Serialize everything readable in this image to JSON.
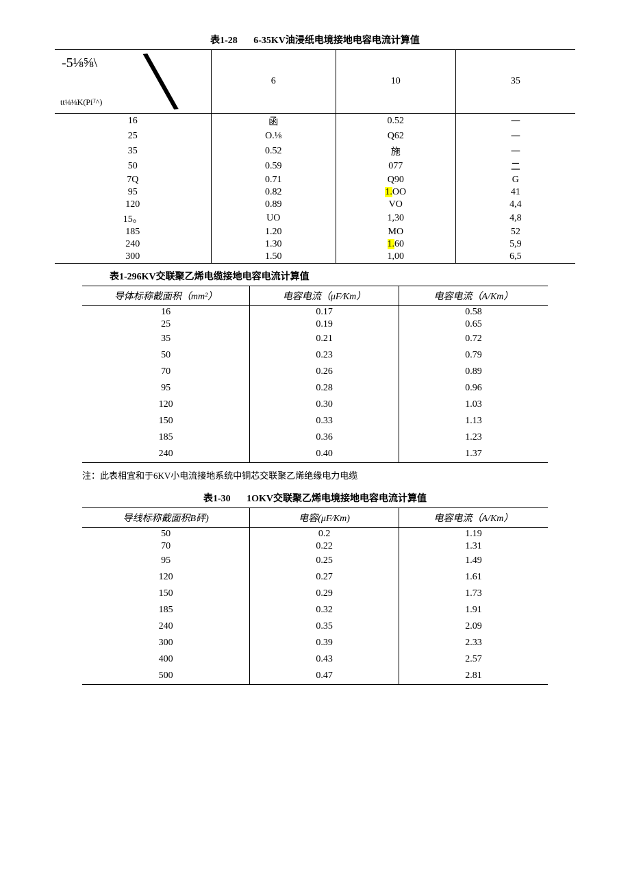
{
  "table1": {
    "caption_num": "表1-28",
    "caption_title": "6-35KV油浸纸电境接地电容电流计算值",
    "diag_top": "-5⅛⅝\\",
    "diag_bottom": "tt⅛⅛K(Piᵀ^)",
    "col_headers": [
      "6",
      "10",
      "35"
    ],
    "rows": [
      {
        "c0": "16",
        "c1": "函",
        "c2": "0.52",
        "c3": "一",
        "hl": []
      },
      {
        "c0": "25",
        "c1": "O.⅛",
        "c2": "Q62",
        "c3": "一",
        "hl": []
      },
      {
        "c0": "35",
        "c1": "0.52",
        "c2": "施",
        "c3": "一",
        "hl": []
      },
      {
        "c0": "50",
        "c1": "0.59",
        "c2": "077",
        "c3": "二",
        "hl": []
      },
      {
        "c0": "7Q",
        "c1": "0.71",
        "c2": "Q90",
        "c3": "G",
        "hl": []
      },
      {
        "c0": "95",
        "c1": "0.82",
        "c2_a": "1.",
        "c2_b": "OO",
        "c3": "41",
        "hl": [
          "c2_a"
        ]
      },
      {
        "c0": "120",
        "c1": "0.89",
        "c2": "VO",
        "c3": "4,4",
        "hl": []
      },
      {
        "c0": "15。",
        "c1": "UO",
        "c2": "1,30",
        "c3": "4,8",
        "hl": []
      },
      {
        "c0": "185",
        "c1": "1.20",
        "c2": "MO",
        "c3": "52",
        "hl": []
      },
      {
        "c0": "240",
        "c1": "1.30",
        "c2_a": "1.",
        "c2_b": "60",
        "c3": "5,9",
        "hl": [
          "c2_a"
        ]
      },
      {
        "c0": "300",
        "c1": "1.50",
        "c2": "1,00",
        "c3": "6,5",
        "hl": []
      }
    ]
  },
  "table2": {
    "caption": "表1-296KV交联聚乙烯电缆接地电容电流计算值",
    "headers": [
      "导体标称截面积（mm²）",
      "电容电流（μF⁄Km）",
      "电容电流（A/Km）"
    ],
    "rows": [
      [
        "16",
        "0.17",
        "0.58"
      ],
      [
        "25",
        "0.19",
        "0.65"
      ],
      [
        "35",
        "0.21",
        "0.72"
      ],
      [
        "50",
        "0.23",
        "0.79"
      ],
      [
        "70",
        "0.26",
        "0.89"
      ],
      [
        "95",
        "0.28",
        "0.96"
      ],
      [
        "120",
        "0.30",
        "1.03"
      ],
      [
        "150",
        "0.33",
        "1.13"
      ],
      [
        "185",
        "0.36",
        "1.23"
      ],
      [
        "240",
        "0.40",
        "1.37"
      ]
    ],
    "note": "注：此表相宜和于6KV小电流接地系统中铜芯交联聚乙烯绝缘电力电缆"
  },
  "table3": {
    "caption_num": "表1-30",
    "caption_title": "1OKV交联聚乙烯电境接地电容电流计算值",
    "headers": [
      "导线标称截面积B砰)",
      "电容(μF⁄Km)",
      "电容电流（A/Km）"
    ],
    "rows": [
      [
        "50",
        "0.2",
        "1.19"
      ],
      [
        "70",
        "0.22",
        "1.31"
      ],
      [
        "95",
        "0.25",
        "1.49"
      ],
      [
        "120",
        "0.27",
        "1.61"
      ],
      [
        "150",
        "0.29",
        "1.73"
      ],
      [
        "185",
        "0.32",
        "1.91"
      ],
      [
        "240",
        "0.35",
        "2.09"
      ],
      [
        "300",
        "0.39",
        "2.33"
      ],
      [
        "400",
        "0.43",
        "2.57"
      ],
      [
        "500",
        "0.47",
        "2.81"
      ]
    ]
  }
}
